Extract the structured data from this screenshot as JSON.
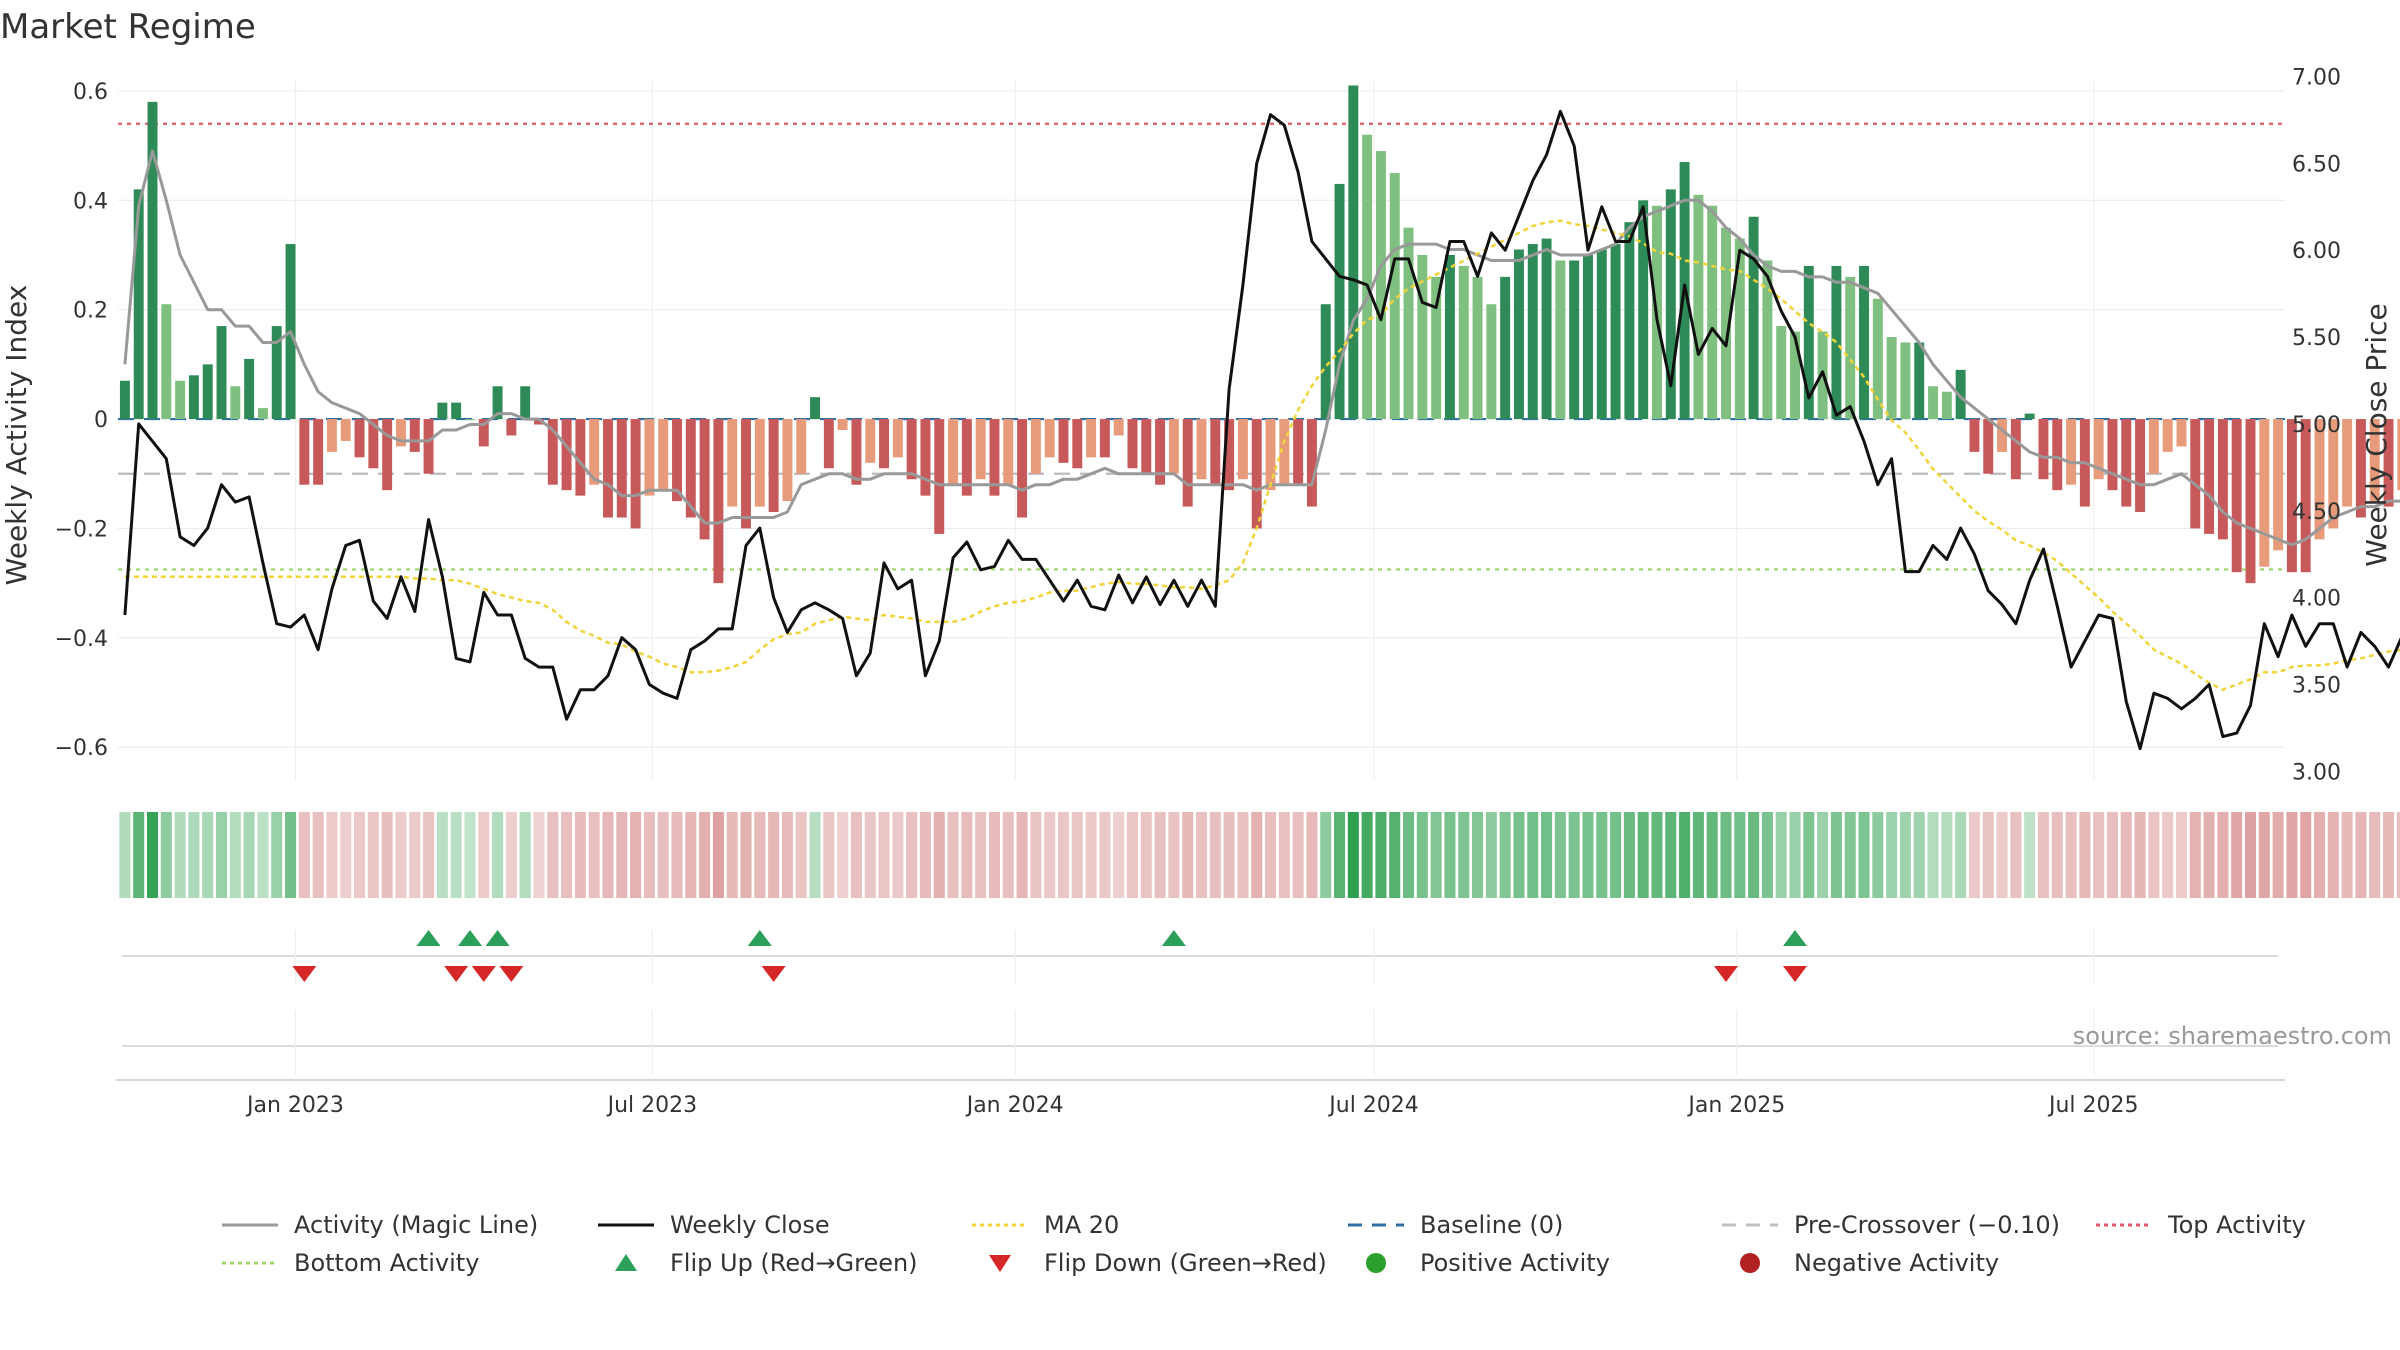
{
  "chart_data": {
    "type": "bar",
    "title": "Market Regime",
    "ylabel": "Weekly Activity Index",
    "y2label": "Weekly Close Price",
    "ylim": [
      -0.66,
      0.62
    ],
    "y2lim": [
      2.95,
      6.98
    ],
    "yticks": [
      0.6,
      0.4,
      0.2,
      0,
      -0.2,
      -0.4,
      -0.6
    ],
    "ytick_labels": [
      "0.6",
      "0.4",
      "0.2",
      "0",
      "−0.2",
      "−0.4",
      "−0.6"
    ],
    "y2ticks": [
      7.0,
      6.5,
      6.0,
      5.5,
      5.0,
      4.5,
      4.0,
      3.5,
      3.0
    ],
    "y2tick_labels": [
      "7.00",
      "6.50",
      "6.00",
      "5.50",
      "5.00",
      "4.50",
      "4.00",
      "3.50",
      "3.00"
    ],
    "x_start": "2022-10-03",
    "x_end": "2025-10-06",
    "xticks": [
      {
        "date": "2023-01-01",
        "label": "Jan 2023"
      },
      {
        "date": "2023-07-01",
        "label": "Jul 2023"
      },
      {
        "date": "2024-01-01",
        "label": "Jan 2024"
      },
      {
        "date": "2024-07-01",
        "label": "Jul 2024"
      },
      {
        "date": "2025-01-01",
        "label": "Jan 2025"
      },
      {
        "date": "2025-07-01",
        "label": "Jul 2025"
      }
    ],
    "grid": true,
    "legend_position": "bottom",
    "reference_lines": [
      {
        "name": "Top Activity",
        "value": 0.54,
        "axis": "left",
        "color": "#e05b6a",
        "style": "dotted"
      },
      {
        "name": "Bottom Activity",
        "value": -0.275,
        "axis": "left",
        "color": "#9ed46b",
        "style": "dotted"
      },
      {
        "name": "Baseline (0)",
        "value": 0,
        "axis": "left",
        "color": "#2f6fa8",
        "style": "dashed"
      },
      {
        "name": "Pre-Crossover (−0.10)",
        "value": -0.1,
        "axis": "left",
        "color": "#bbbbbb",
        "style": "dashed"
      }
    ],
    "activity": [
      0.07,
      0.42,
      0.58,
      0.21,
      0.07,
      0.08,
      0.1,
      0.17,
      0.06,
      0.11,
      0.02,
      0.17,
      0.32,
      -0.12,
      -0.12,
      -0.06,
      -0.04,
      -0.07,
      -0.09,
      -0.13,
      -0.05,
      -0.06,
      -0.1,
      0.03,
      0.03,
      0.0,
      -0.05,
      0.06,
      -0.03,
      0.06,
      -0.01,
      -0.12,
      -0.13,
      -0.14,
      -0.12,
      -0.18,
      -0.18,
      -0.2,
      -0.14,
      -0.13,
      -0.15,
      -0.18,
      -0.22,
      -0.3,
      -0.16,
      -0.2,
      -0.16,
      -0.17,
      -0.15,
      -0.1,
      0.04,
      -0.09,
      -0.02,
      -0.12,
      -0.08,
      -0.09,
      -0.07,
      -0.11,
      -0.14,
      -0.21,
      -0.12,
      -0.14,
      -0.11,
      -0.14,
      -0.12,
      -0.18,
      -0.1,
      -0.07,
      -0.08,
      -0.09,
      -0.07,
      -0.07,
      -0.03,
      -0.09,
      -0.1,
      -0.12,
      -0.1,
      -0.16,
      -0.11,
      -0.12,
      -0.13,
      -0.11,
      -0.2,
      -0.13,
      -0.12,
      -0.12,
      -0.16,
      0.21,
      0.43,
      0.61,
      0.52,
      0.49,
      0.45,
      0.35,
      0.3,
      0.26,
      0.3,
      0.28,
      0.26,
      0.21,
      0.26,
      0.31,
      0.32,
      0.33,
      0.29,
      0.29,
      0.3,
      0.31,
      0.32,
      0.36,
      0.4,
      0.39,
      0.42,
      0.47,
      0.41,
      0.39,
      0.35,
      0.33,
      0.37,
      0.29,
      0.17,
      0.16,
      0.28,
      0.16,
      0.28,
      0.26,
      0.28,
      0.22,
      0.15,
      0.14,
      0.14,
      0.06,
      0.05,
      0.09,
      -0.06,
      -0.1,
      -0.06,
      -0.11,
      0.01,
      -0.11,
      -0.13,
      -0.12,
      -0.16,
      -0.11,
      -0.13,
      -0.16,
      -0.17,
      -0.1,
      -0.06,
      -0.05,
      -0.2,
      -0.21,
      -0.22,
      -0.28,
      -0.3,
      -0.27,
      -0.24,
      -0.28,
      -0.28,
      -0.22,
      -0.2,
      -0.16,
      -0.18,
      -0.15,
      -0.16,
      -0.13,
      -0.15,
      -0.13,
      -0.16,
      -0.15,
      -0.18,
      -0.16,
      -0.29,
      -0.2,
      -0.22,
      -0.22,
      -0.17
    ],
    "magic_line": [
      0.1,
      0.39,
      0.49,
      0.4,
      0.3,
      0.25,
      0.2,
      0.2,
      0.17,
      0.17,
      0.14,
      0.14,
      0.16,
      0.1,
      0.05,
      0.03,
      0.02,
      0.01,
      -0.01,
      -0.03,
      -0.04,
      -0.04,
      -0.04,
      -0.02,
      -0.02,
      -0.01,
      -0.01,
      0.01,
      0.01,
      0.0,
      0.0,
      -0.02,
      -0.05,
      -0.08,
      -0.11,
      -0.12,
      -0.14,
      -0.14,
      -0.13,
      -0.13,
      -0.13,
      -0.16,
      -0.19,
      -0.19,
      -0.18,
      -0.18,
      -0.18,
      -0.18,
      -0.17,
      -0.12,
      -0.11,
      -0.1,
      -0.1,
      -0.11,
      -0.11,
      -0.1,
      -0.1,
      -0.1,
      -0.11,
      -0.12,
      -0.12,
      -0.12,
      -0.12,
      -0.12,
      -0.12,
      -0.13,
      -0.12,
      -0.12,
      -0.11,
      -0.11,
      -0.1,
      -0.09,
      -0.1,
      -0.1,
      -0.1,
      -0.1,
      -0.1,
      -0.12,
      -0.12,
      -0.12,
      -0.12,
      -0.12,
      -0.13,
      -0.12,
      -0.12,
      -0.12,
      -0.12,
      -0.02,
      0.1,
      0.18,
      0.22,
      0.28,
      0.31,
      0.32,
      0.32,
      0.32,
      0.31,
      0.31,
      0.3,
      0.29,
      0.29,
      0.29,
      0.3,
      0.31,
      0.3,
      0.3,
      0.3,
      0.31,
      0.32,
      0.35,
      0.37,
      0.38,
      0.39,
      0.4,
      0.4,
      0.38,
      0.35,
      0.33,
      0.3,
      0.28,
      0.27,
      0.27,
      0.26,
      0.26,
      0.25,
      0.25,
      0.24,
      0.23,
      0.2,
      0.17,
      0.14,
      0.1,
      0.07,
      0.04,
      0.02,
      0.0,
      -0.02,
      -0.04,
      -0.06,
      -0.07,
      -0.07,
      -0.08,
      -0.08,
      -0.09,
      -0.1,
      -0.11,
      -0.12,
      -0.12,
      -0.11,
      -0.1,
      -0.12,
      -0.14,
      -0.17,
      -0.19,
      -0.2,
      -0.21,
      -0.22,
      -0.23,
      -0.22,
      -0.2,
      -0.18,
      -0.17,
      -0.16,
      -0.16,
      -0.15,
      -0.15,
      -0.15,
      -0.15,
      -0.16,
      -0.17,
      -0.18,
      -0.2,
      -0.21,
      -0.2,
      -0.21,
      -0.2,
      -0.2
    ],
    "weekly_close": [
      3.9,
      5.0,
      4.9,
      4.8,
      4.35,
      4.3,
      4.4,
      4.65,
      4.55,
      4.58,
      4.2,
      3.85,
      3.83,
      3.9,
      3.7,
      4.05,
      4.3,
      4.33,
      3.98,
      3.88,
      4.12,
      3.92,
      4.45,
      4.12,
      3.65,
      3.63,
      4.03,
      3.9,
      3.9,
      3.65,
      3.6,
      3.6,
      3.3,
      3.47,
      3.47,
      3.55,
      3.77,
      3.7,
      3.5,
      3.45,
      3.42,
      3.7,
      3.75,
      3.82,
      3.82,
      4.3,
      4.4,
      4.0,
      3.8,
      3.93,
      3.97,
      3.93,
      3.88,
      3.55,
      3.68,
      4.2,
      4.05,
      4.1,
      3.55,
      3.75,
      4.23,
      4.32,
      4.16,
      4.18,
      4.33,
      4.22,
      4.22,
      4.1,
      3.98,
      4.1,
      3.95,
      3.93,
      4.13,
      3.97,
      4.12,
      3.96,
      4.1,
      3.95,
      4.1,
      3.95,
      5.2,
      5.8,
      6.5,
      6.78,
      6.72,
      6.45,
      6.05,
      5.95,
      5.85,
      5.83,
      5.8,
      5.6,
      5.95,
      5.95,
      5.7,
      5.67,
      6.05,
      6.05,
      5.85,
      6.1,
      6.0,
      6.2,
      6.4,
      6.55,
      6.8,
      6.6,
      6.0,
      6.25,
      6.05,
      6.05,
      6.25,
      5.6,
      5.22,
      5.8,
      5.4,
      5.55,
      5.45,
      6.0,
      5.95,
      5.85,
      5.65,
      5.5,
      5.15,
      5.3,
      5.05,
      5.1,
      4.9,
      4.65,
      4.8,
      4.15,
      4.15,
      4.3,
      4.22,
      4.4,
      4.25,
      4.04,
      3.96,
      3.85,
      4.1,
      4.28,
      3.95,
      3.6,
      3.75,
      3.9,
      3.88,
      3.4,
      3.13,
      3.45,
      3.42,
      3.36,
      3.42,
      3.5,
      3.2,
      3.22,
      3.38,
      3.85,
      3.66,
      3.9,
      3.72,
      3.85,
      3.85,
      3.6,
      3.8,
      3.72,
      3.6,
      3.78,
      3.72,
      3.85,
      3.88,
      3.82,
      4.02,
      4.13
    ],
    "ma20": [
      4.12,
      4.12,
      4.12,
      4.12,
      4.12,
      4.12,
      4.12,
      4.12,
      4.12,
      4.12,
      4.12,
      4.12,
      4.12,
      4.12,
      4.12,
      4.12,
      4.12,
      4.12,
      4.12,
      4.12,
      4.12,
      4.11,
      4.11,
      4.1,
      4.1,
      4.08,
      4.05,
      4.02,
      4.0,
      3.98,
      3.97,
      3.93,
      3.86,
      3.81,
      3.78,
      3.74,
      3.73,
      3.69,
      3.66,
      3.62,
      3.6,
      3.57,
      3.57,
      3.58,
      3.6,
      3.63,
      3.7,
      3.76,
      3.79,
      3.8,
      3.85,
      3.87,
      3.89,
      3.88,
      3.87,
      3.9,
      3.89,
      3.88,
      3.86,
      3.86,
      3.86,
      3.88,
      3.92,
      3.95,
      3.97,
      3.98,
      4.0,
      4.03,
      4.04,
      4.04,
      4.06,
      4.08,
      4.09,
      4.08,
      4.08,
      4.07,
      4.06,
      4.06,
      4.05,
      4.07,
      4.1,
      4.2,
      4.4,
      4.65,
      4.9,
      5.08,
      5.22,
      5.33,
      5.42,
      5.52,
      5.6,
      5.63,
      5.72,
      5.78,
      5.82,
      5.86,
      5.9,
      5.94,
      5.98,
      6.02,
      6.06,
      6.1,
      6.14,
      6.16,
      6.17,
      6.15,
      6.14,
      6.12,
      6.1,
      6.08,
      6.04,
      5.99,
      5.98,
      5.94,
      5.93,
      5.91,
      5.89,
      5.88,
      5.83,
      5.78,
      5.72,
      5.65,
      5.58,
      5.53,
      5.47,
      5.37,
      5.27,
      5.14,
      5.02,
      4.95,
      4.85,
      4.74,
      4.66,
      4.58,
      4.5,
      4.44,
      4.39,
      4.33,
      4.3,
      4.26,
      4.21,
      4.14,
      4.07,
      4.0,
      3.92,
      3.85,
      3.78,
      3.7,
      3.66,
      3.62,
      3.56,
      3.51,
      3.47,
      3.5,
      3.53,
      3.57,
      3.57,
      3.6,
      3.61,
      3.61,
      3.62,
      3.64,
      3.65,
      3.67,
      3.69,
      3.7,
      3.72,
      3.74,
      3.76,
      3.8
    ],
    "flip_up_week_index": [
      22,
      25,
      27,
      46,
      76,
      121
    ],
    "flip_down_week_index": [
      13,
      24,
      26,
      28,
      47,
      116,
      121
    ],
    "regime_colors": {
      "positive_bar_strong": "#2e8b57",
      "positive_bar_weak": "#7fbf7f",
      "negative_bar_strong": "#c8595a",
      "negative_bar_weak": "#e89b7a",
      "magic_line": "#999999",
      "weekly_close": "#111111",
      "ma20": "#f0d43a",
      "flip_up": "#2ca05a",
      "flip_down": "#d62728",
      "positive_activity": "#2ca02c",
      "negative_activity": "#b22222"
    },
    "legend": [
      {
        "label": "Activity (Magic Line)",
        "kind": "line",
        "color": "#999999",
        "dash": ""
      },
      {
        "label": "Weekly Close",
        "kind": "line",
        "color": "#111111",
        "dash": ""
      },
      {
        "label": "MA 20",
        "kind": "line",
        "color": "#f0d43a",
        "dash": "4,4"
      },
      {
        "label": "Baseline (0)",
        "kind": "line",
        "color": "#2f6fa8",
        "dash": "14,10"
      },
      {
        "label": "Pre-Crossover (−0.10)",
        "kind": "line",
        "color": "#c0c0c0",
        "dash": "14,10"
      },
      {
        "label": "Top Activity",
        "kind": "line",
        "color": "#e05b6a",
        "dash": "4,4"
      },
      {
        "label": "Bottom Activity",
        "kind": "line",
        "color": "#9ed46b",
        "dash": "4,4"
      },
      {
        "label": "Flip Up (Red→Green)",
        "kind": "tri-up",
        "color": "#2ca05a",
        "dash": ""
      },
      {
        "label": "Flip Down (Green→Red)",
        "kind": "tri-down",
        "color": "#d62728",
        "dash": ""
      },
      {
        "label": "Positive Activity",
        "kind": "dot",
        "color": "#2ca02c",
        "dash": ""
      },
      {
        "label": "Negative Activity",
        "kind": "dot",
        "color": "#b22222",
        "dash": ""
      }
    ],
    "source": "source: sharemaestro.com"
  }
}
